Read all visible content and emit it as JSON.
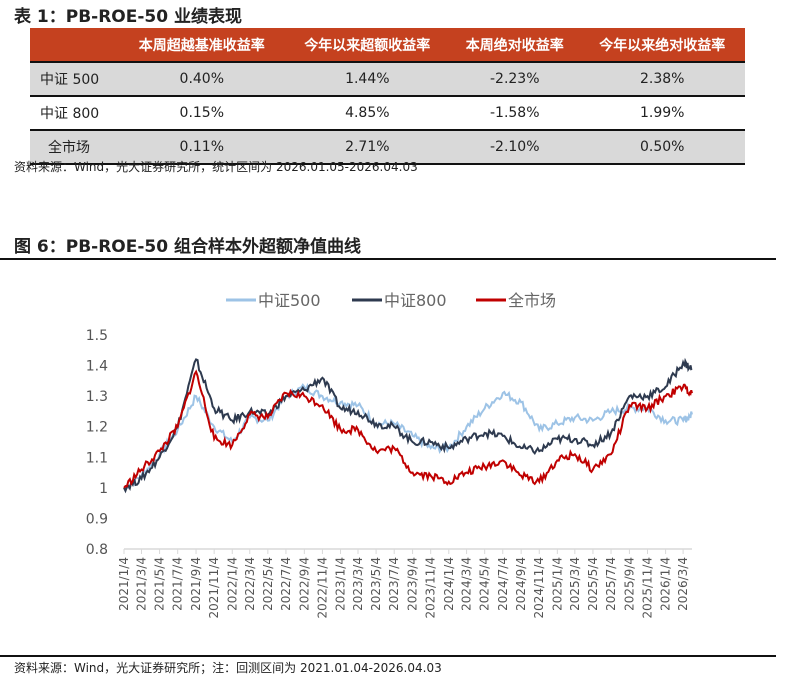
{
  "table": {
    "title": "表 1：PB-ROE-50 业绩表现",
    "headers": [
      "",
      "本周超越基准收益率",
      "今年以来超额收益率",
      "本周绝对收益率",
      "今年以来绝对收益率"
    ],
    "rows": [
      [
        "中证 500",
        "0.40%",
        "1.44%",
        "-2.23%",
        "2.38%"
      ],
      [
        "中证 800",
        "0.15%",
        "4.85%",
        "-1.58%",
        "1.99%"
      ],
      [
        "全市场",
        "0.11%",
        "2.71%",
        "-2.10%",
        "0.50%"
      ]
    ],
    "header_color": "#c5411f",
    "source": "资料来源：Wind，光大证券研究所，统计区间为 2026.01.05-2026.04.03"
  },
  "figure": {
    "title": "图 6：PB-ROE-50 组合样本外超额净值曲线",
    "source": "资料来源：Wind，光大证券研究所；注：回测区间为 2021.01.04-2026.04.03"
  },
  "chart_data": {
    "type": "line",
    "ylim": [
      0.8,
      1.5
    ],
    "yticks": [
      "0.8",
      "0.9",
      "1",
      "1.1",
      "1.2",
      "1.3",
      "1.4",
      "1.5"
    ],
    "grid": false,
    "legend": "top",
    "x_ticks": [
      "2021/1/4",
      "2021/3/4",
      "2021/5/4",
      "2021/7/4",
      "2021/9/4",
      "2021/11/4",
      "2022/1/4",
      "2022/3/4",
      "2022/5/4",
      "2022/7/4",
      "2022/9/4",
      "2022/11/4",
      "2023/1/4",
      "2023/3/4",
      "2023/5/4",
      "2023/7/4",
      "2023/9/4",
      "2023/11/4",
      "2024/1/4",
      "2024/3/4",
      "2024/5/4",
      "2024/7/4",
      "2024/9/4",
      "2024/11/4",
      "2025/1/4",
      "2025/3/4",
      "2025/5/4",
      "2025/7/4",
      "2025/9/4",
      "2025/11/4",
      "2026/1/4",
      "2026/3/4"
    ],
    "x": [
      "2021/1/4",
      "2021/3/4",
      "2021/5/4",
      "2021/7/4",
      "2021/9/4",
      "2021/11/4",
      "2022/1/4",
      "2022/3/4",
      "2022/5/4",
      "2022/7/4",
      "2022/9/4",
      "2022/11/4",
      "2023/1/4",
      "2023/3/4",
      "2023/5/4",
      "2023/7/4",
      "2023/9/4",
      "2023/11/4",
      "2024/1/4",
      "2024/3/4",
      "2024/5/4",
      "2024/7/4",
      "2024/9/4",
      "2024/11/4",
      "2025/1/4",
      "2025/3/4",
      "2025/5/4",
      "2025/7/4",
      "2025/9/4",
      "2025/11/4",
      "2026/1/4",
      "2026/3/4",
      "2026/4/3"
    ],
    "series": [
      {
        "name": "中证500",
        "color": "#9dc3e6",
        "values": [
          1.0,
          1.04,
          1.11,
          1.19,
          1.3,
          1.2,
          1.15,
          1.23,
          1.22,
          1.3,
          1.33,
          1.3,
          1.28,
          1.27,
          1.21,
          1.21,
          1.17,
          1.13,
          1.13,
          1.2,
          1.26,
          1.31,
          1.28,
          1.19,
          1.21,
          1.23,
          1.22,
          1.25,
          1.26,
          1.26,
          1.22,
          1.22,
          1.24
        ]
      },
      {
        "name": "中证800",
        "color": "#2e3a4f",
        "values": [
          1.0,
          1.03,
          1.1,
          1.2,
          1.42,
          1.26,
          1.22,
          1.25,
          1.24,
          1.3,
          1.32,
          1.36,
          1.26,
          1.25,
          1.21,
          1.2,
          1.15,
          1.15,
          1.13,
          1.16,
          1.18,
          1.17,
          1.13,
          1.12,
          1.16,
          1.16,
          1.14,
          1.18,
          1.3,
          1.3,
          1.33,
          1.41,
          1.39
        ]
      },
      {
        "name": "全市场",
        "color": "#c00000",
        "values": [
          1.0,
          1.06,
          1.12,
          1.2,
          1.38,
          1.16,
          1.14,
          1.24,
          1.23,
          1.31,
          1.3,
          1.27,
          1.19,
          1.19,
          1.12,
          1.13,
          1.05,
          1.04,
          1.02,
          1.05,
          1.07,
          1.09,
          1.04,
          1.02,
          1.09,
          1.11,
          1.06,
          1.11,
          1.27,
          1.26,
          1.3,
          1.33,
          1.31
        ]
      }
    ]
  }
}
